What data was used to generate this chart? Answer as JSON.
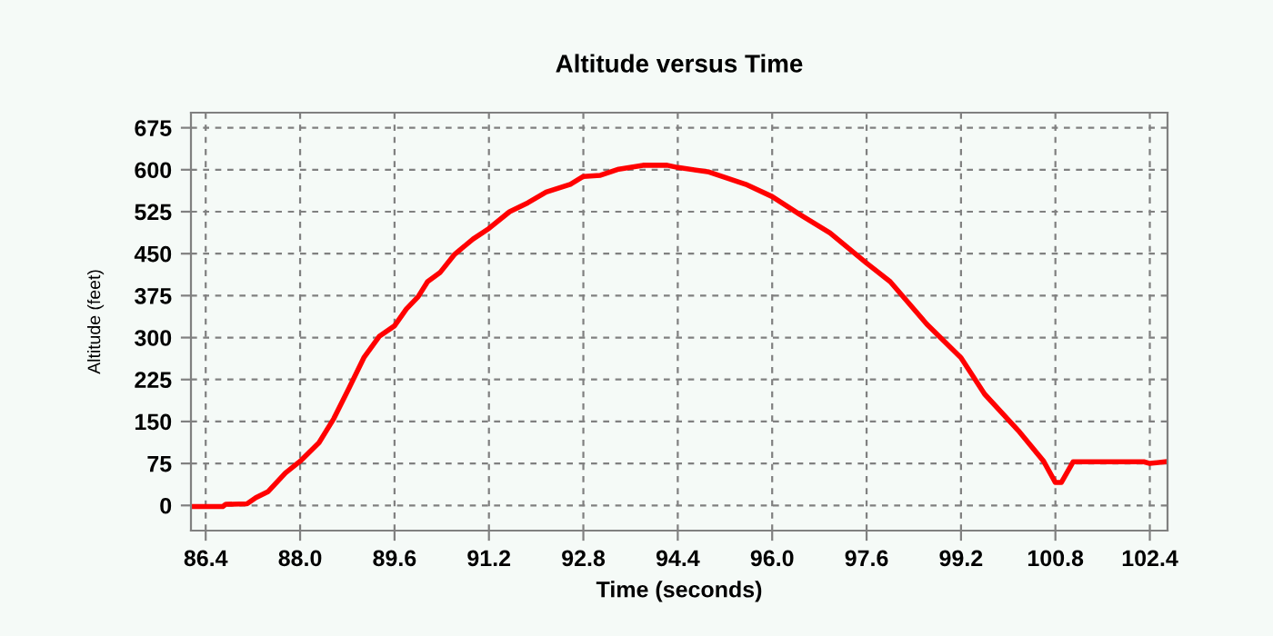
{
  "chart_data": {
    "type": "line",
    "title": "Altitude versus Time",
    "xlabel": "Time (seconds)",
    "ylabel": "Altitude (feet)",
    "x": [
      86.2,
      86.69,
      86.74,
      87.1,
      87.25,
      87.46,
      87.75,
      88.0,
      88.32,
      88.57,
      88.83,
      89.08,
      89.34,
      89.6,
      89.8,
      90.0,
      90.16,
      90.37,
      90.62,
      90.93,
      91.2,
      91.55,
      91.86,
      92.17,
      92.58,
      92.8,
      93.09,
      93.4,
      93.81,
      94.22,
      94.4,
      94.93,
      95.55,
      96.0,
      96.47,
      96.98,
      97.6,
      98.0,
      98.62,
      99.2,
      99.6,
      100.17,
      100.6,
      100.8,
      100.9,
      101.1,
      102.3,
      102.4,
      102.65
    ],
    "series": [
      {
        "color": "#ff0000",
        "values": [
          -2,
          -2,
          2,
          3,
          14,
          25,
          58,
          79,
          112,
          155,
          210,
          264,
          302,
          321,
          351,
          373,
          400,
          416,
          449,
          476,
          495,
          525,
          541,
          560,
          574,
          588,
          590,
          601,
          608,
          608,
          604,
          596,
          574,
          552,
          520,
          487,
          433,
          400,
          324,
          264,
          199,
          134,
          79,
          41,
          41,
          78,
          78,
          75,
          78
        ]
      }
    ],
    "xlim": [
      86.15,
      102.7
    ],
    "ylim": [
      -45,
      702
    ],
    "xticks": [
      86.4,
      {
        "value": 88,
        "label": "88.0"
      },
      89.6,
      91.2,
      92.8,
      94.4,
      {
        "value": 96,
        "label": "96.0"
      },
      97.6,
      99.2,
      100.8,
      102.4
    ],
    "yticks": [
      0,
      75,
      150,
      225,
      300,
      375,
      450,
      525,
      600,
      675
    ],
    "grid": true,
    "marker": "none",
    "line_style": "solid",
    "legend": false
  }
}
